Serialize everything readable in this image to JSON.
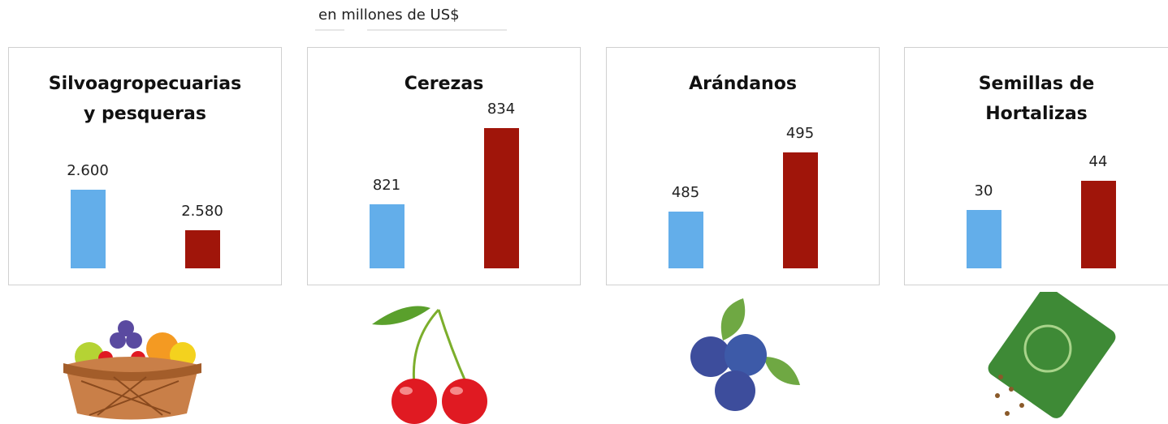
{
  "unit_note": "en millones de US$",
  "chart_data": [
    {
      "type": "bar",
      "title": "Silvoagropecuarias y pesqueras",
      "values": [
        2600,
        2580
      ],
      "value_labels": [
        "2.600",
        "2.580"
      ],
      "colors": [
        "#63aeea",
        "#a0150a"
      ],
      "ylim": [
        2561,
        2633
      ]
    },
    {
      "type": "bar",
      "title": "Cerezas",
      "values": [
        821,
        834
      ],
      "colors": [
        "#63aeea",
        "#a0150a"
      ],
      "ylim": [
        810,
        835
      ]
    },
    {
      "type": "bar",
      "title": "Arándanos",
      "values": [
        485,
        495
      ],
      "colors": [
        "#63aeea",
        "#a0150a"
      ],
      "ylim": [
        475.5,
        500
      ]
    },
    {
      "type": "bar",
      "title": "Semillas de Hortalizas",
      "values": [
        30,
        44
      ],
      "colors": [
        "#63aeea",
        "#a0150a"
      ],
      "ylim": [
        2,
        72
      ]
    }
  ]
}
